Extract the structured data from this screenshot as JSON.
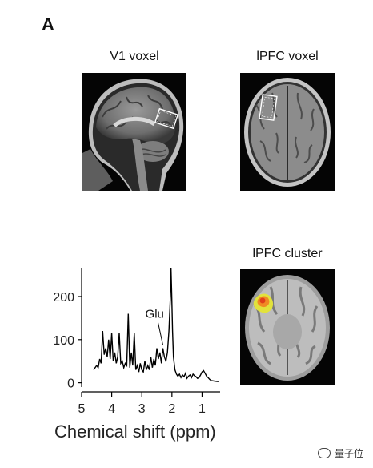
{
  "panel_label": "A",
  "captions": {
    "v1": "V1 voxel",
    "lpfc": "lPFC voxel",
    "cluster": "lPFC cluster"
  },
  "annotation": "Glu",
  "watermark": "量子位",
  "chart_data": {
    "type": "line",
    "title": "",
    "xlabel": "Chemical shift (ppm)",
    "ylabel": "",
    "xlim": [
      5,
      0.4
    ],
    "x_reversed": true,
    "ylim": [
      -10,
      265
    ],
    "xticks": [
      5,
      4,
      3,
      2,
      1
    ],
    "yticks": [
      0,
      100,
      200
    ],
    "annotation": {
      "text": "Glu",
      "x": 2.3,
      "y": 80
    },
    "series": [
      {
        "x": [
          4.6,
          4.5,
          4.45,
          4.4,
          4.35,
          4.3,
          4.25,
          4.2,
          4.15,
          4.1,
          4.05,
          4.0,
          3.95,
          3.9,
          3.85,
          3.8,
          3.75,
          3.7,
          3.65,
          3.6,
          3.55,
          3.5,
          3.45,
          3.4,
          3.35,
          3.3,
          3.25,
          3.2,
          3.15,
          3.1,
          3.05,
          3.0,
          2.95,
          2.9,
          2.85,
          2.8,
          2.75,
          2.7,
          2.65,
          2.6,
          2.55,
          2.5,
          2.45,
          2.4,
          2.35,
          2.3,
          2.25,
          2.2,
          2.15,
          2.1,
          2.05,
          2.03,
          2.01,
          1.98,
          1.95,
          1.9,
          1.85,
          1.8,
          1.75,
          1.7,
          1.65,
          1.6,
          1.55,
          1.5,
          1.45,
          1.4,
          1.35,
          1.3,
          1.25,
          1.2,
          1.15,
          1.1,
          1.05,
          1.0,
          0.95,
          0.9,
          0.85,
          0.8,
          0.75,
          0.7,
          0.6,
          0.5,
          0.45
        ],
        "y": [
          30,
          40,
          35,
          55,
          45,
          120,
          65,
          80,
          60,
          100,
          55,
          115,
          50,
          70,
          45,
          60,
          115,
          45,
          50,
          35,
          45,
          40,
          160,
          35,
          70,
          40,
          115,
          30,
          40,
          25,
          45,
          30,
          25,
          50,
          30,
          40,
          30,
          60,
          35,
          55,
          40,
          80,
          55,
          70,
          45,
          80,
          60,
          50,
          70,
          120,
          200,
          265,
          210,
          120,
          60,
          30,
          20,
          15,
          20,
          12,
          18,
          14,
          22,
          10,
          15,
          18,
          12,
          20,
          16,
          14,
          10,
          12,
          18,
          25,
          28,
          22,
          15,
          12,
          8,
          5,
          4,
          3,
          3
        ]
      }
    ]
  }
}
